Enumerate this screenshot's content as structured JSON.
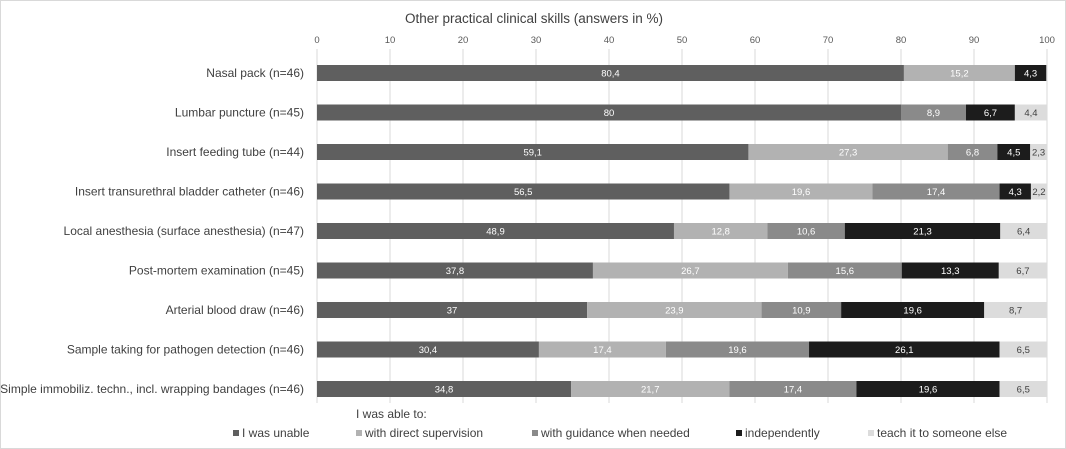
{
  "chart_data": {
    "type": "bar",
    "orientation": "horizontal-stacked",
    "title": "Other practical clinical skills (answers in %)",
    "xlim": [
      0,
      100
    ],
    "xticks": [
      0,
      10,
      20,
      30,
      40,
      50,
      60,
      70,
      80,
      90,
      100
    ],
    "grid": true,
    "legend_title": "I was able to:",
    "legend_position": "bottom",
    "categories": [
      "Nasal pack (n=46)",
      "Lumbar puncture (n=45)",
      "Insert feeding tube (n=44)",
      "Insert transurethral bladder catheter (n=46)",
      "Local anesthesia (surface anesthesia) (n=47)",
      "Post-mortem examination (n=45)",
      "Arterial blood draw (n=46)",
      "Sample taking for pathogen detection (n=46)",
      "Simple immobiliz. techn., incl. wrapping bandages (n=46)"
    ],
    "series": [
      {
        "name": "I was unable",
        "color": "#5f5f5f",
        "label_color": "#ffffff",
        "values": [
          80.4,
          80,
          59.1,
          56.5,
          48.9,
          37.8,
          37,
          30.4,
          34.8
        ],
        "labels": [
          "80,4",
          "80",
          "59,1",
          "56,5",
          "48,9",
          "37,8",
          "37",
          "30,4",
          "34,8"
        ]
      },
      {
        "name": "with direct supervision",
        "color": "#b2b2b2",
        "label_color": "#ffffff",
        "values": [
          15.2,
          0,
          27.3,
          19.6,
          12.8,
          26.7,
          23.9,
          17.4,
          21.7
        ],
        "labels": [
          "15,2",
          "",
          "27,3",
          "19,6",
          "12,8",
          "26,7",
          "23,9",
          "17,4",
          "21,7"
        ]
      },
      {
        "name": "with guidance when needed",
        "color": "#8a8a8a",
        "label_color": "#ffffff",
        "values": [
          0,
          8.9,
          6.8,
          17.4,
          10.6,
          15.6,
          10.9,
          19.6,
          17.4
        ],
        "labels": [
          "",
          "8,9",
          "6,8",
          "17,4",
          "10,6",
          "15,6",
          "10,9",
          "19,6",
          "17,4"
        ]
      },
      {
        "name": "independently",
        "color": "#1c1c1c",
        "label_color": "#ffffff",
        "values": [
          4.3,
          6.7,
          4.5,
          4.3,
          21.3,
          13.3,
          19.6,
          26.1,
          19.6
        ],
        "labels": [
          "4,3",
          "6,7",
          "4,5",
          "4,3",
          "21,3",
          "13,3",
          "19,6",
          "26,1",
          "19,6"
        ]
      },
      {
        "name": "teach it to someone else",
        "color": "#dcdcdc",
        "label_color": "#404040",
        "values": [
          0,
          4.4,
          2.3,
          2.2,
          6.4,
          6.7,
          8.7,
          6.5,
          6.5
        ],
        "labels": [
          "",
          "4,4",
          "2,3",
          "2,2",
          "6,4",
          "6,7",
          "8,7",
          "6,5",
          "6,5"
        ]
      }
    ]
  }
}
